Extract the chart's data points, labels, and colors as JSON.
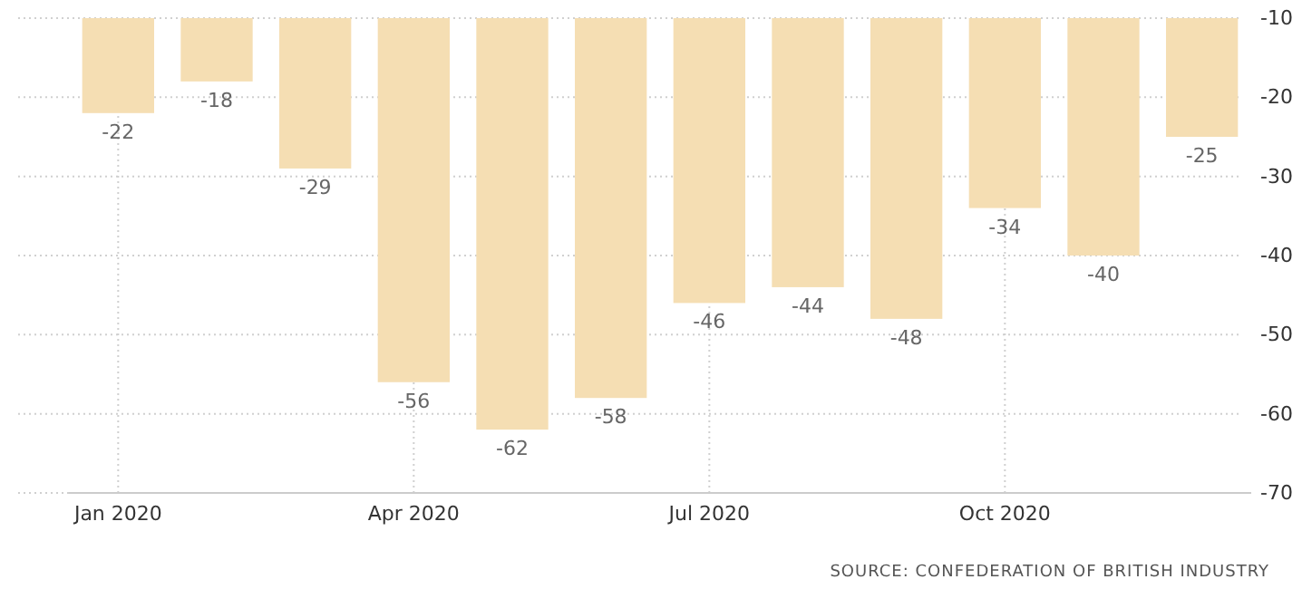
{
  "chart_data": {
    "type": "bar",
    "categories": [
      "Jan 2020",
      null,
      null,
      "Apr 2020",
      null,
      null,
      "Jul 2020",
      null,
      null,
      "Oct 2020",
      null,
      null
    ],
    "values": [
      -22,
      -18,
      -29,
      -56,
      -62,
      -58,
      -46,
      -44,
      -48,
      -34,
      -40,
      -25
    ],
    "color": "#f5deb3",
    "ylim": [
      -70,
      -10
    ],
    "yticks": [
      -70,
      -60,
      -50,
      -40,
      -30,
      -20,
      -10
    ],
    "grid": true,
    "data_labels": true,
    "annotations": [
      "SOURCE: CONFEDERATION OF BRITISH INDUSTRY"
    ]
  }
}
